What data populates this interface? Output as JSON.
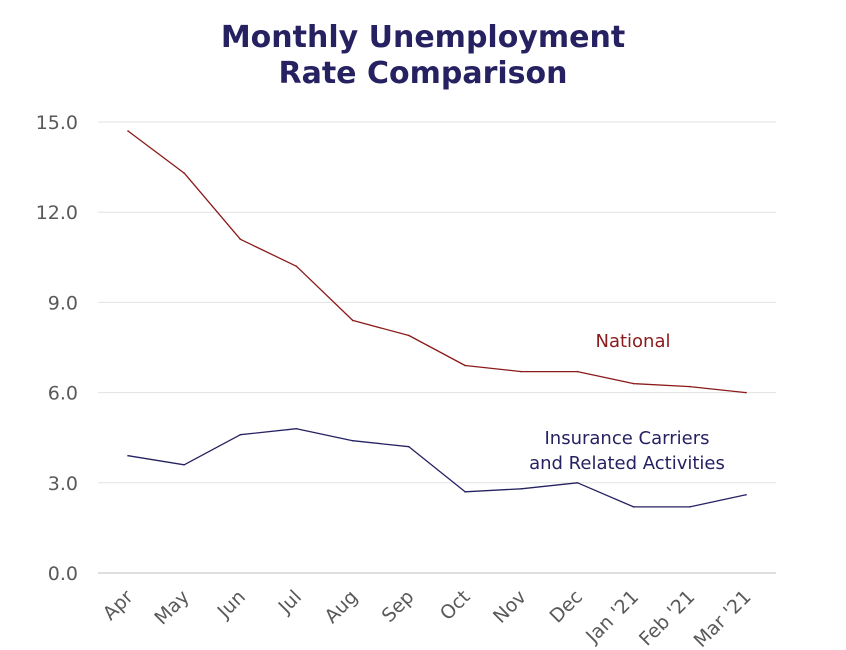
{
  "chart_data": {
    "type": "line",
    "title_lines": [
      "Monthly Unemployment",
      "Rate Comparison"
    ],
    "categories": [
      "Apr",
      "May",
      "Jun",
      "Jul",
      "Aug",
      "Sep",
      "Oct",
      "Nov",
      "Dec",
      "Jan '21",
      "Feb '21",
      "Mar '21"
    ],
    "ylim": [
      0,
      15
    ],
    "yticks": [
      "0.0",
      "3.0",
      "6.0",
      "9.0",
      "12.0",
      "15.0"
    ],
    "grid": true,
    "series": [
      {
        "name": "National",
        "color": "#8B1A1A",
        "values": [
          14.7,
          13.3,
          11.1,
          10.2,
          8.4,
          7.9,
          6.9,
          6.7,
          6.7,
          6.3,
          6.2,
          6.0
        ],
        "label_lines": [
          "National"
        ]
      },
      {
        "name": "Insurance Carriers and Related Activities",
        "color": "#262262",
        "values": [
          3.9,
          3.6,
          4.6,
          4.8,
          4.4,
          4.2,
          2.7,
          2.8,
          3.0,
          2.2,
          2.2,
          2.6
        ],
        "label_lines": [
          "Insurance Carriers",
          "and Related Activities"
        ]
      }
    ]
  }
}
